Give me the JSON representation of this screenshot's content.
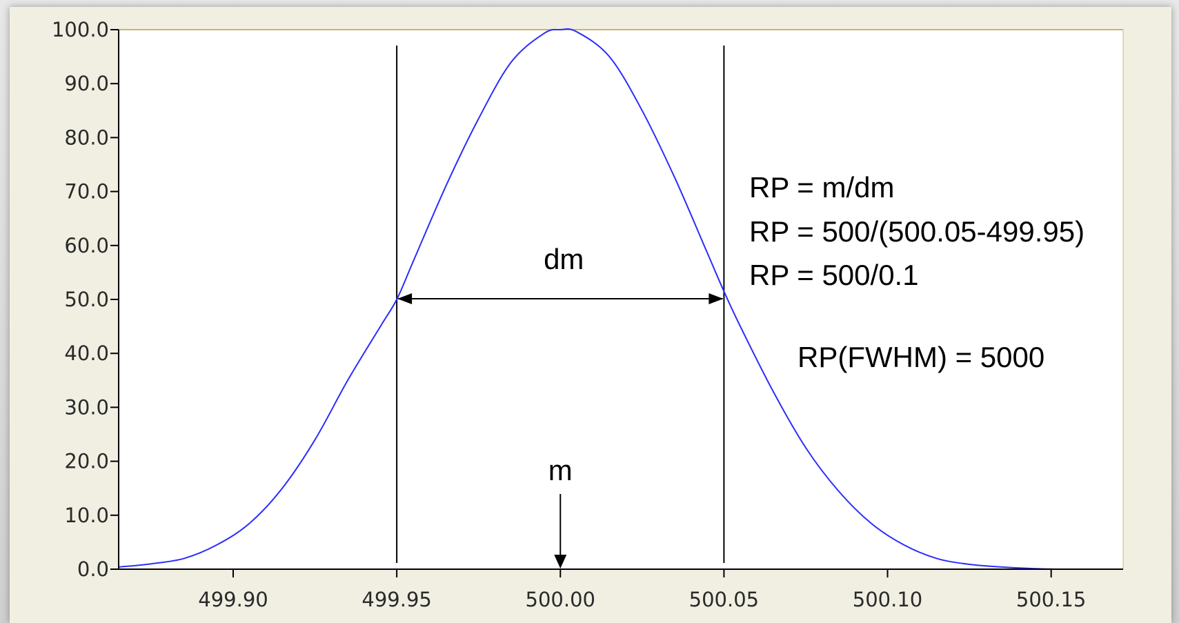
{
  "chart_data": {
    "type": "line",
    "title": "",
    "xlabel": "",
    "ylabel": "",
    "xlim": [
      499.865,
      500.172
    ],
    "ylim": [
      0,
      100
    ],
    "grid": false,
    "x_ticks": [
      {
        "value": 499.9,
        "label": "499.90"
      },
      {
        "value": 499.95,
        "label": "499.95"
      },
      {
        "value": 500.0,
        "label": "500.00"
      },
      {
        "value": 500.05,
        "label": "500.05"
      },
      {
        "value": 500.1,
        "label": "500.10"
      },
      {
        "value": 500.15,
        "label": "500.15"
      }
    ],
    "y_ticks": [
      {
        "value": 0,
        "label": "0.0"
      },
      {
        "value": 10,
        "label": "10.0"
      },
      {
        "value": 20,
        "label": "20.0"
      },
      {
        "value": 30,
        "label": "30.0"
      },
      {
        "value": 40,
        "label": "40.0"
      },
      {
        "value": 50,
        "label": "50.0"
      },
      {
        "value": 60,
        "label": "60.0"
      },
      {
        "value": 70,
        "label": "70.0"
      },
      {
        "value": 80,
        "label": "80.0"
      },
      {
        "value": 90,
        "label": "90.0"
      },
      {
        "value": 100,
        "label": "100.0"
      }
    ],
    "series": [
      {
        "color": "#2b2bff",
        "x": [
          499.865,
          499.875,
          499.885,
          499.895,
          499.905,
          499.915,
          499.925,
          499.935,
          499.945,
          499.95,
          499.955,
          499.965,
          499.975,
          499.985,
          499.995,
          500.0,
          500.005,
          500.015,
          500.025,
          500.035,
          500.045,
          500.05,
          500.055,
          500.065,
          500.075,
          500.085,
          500.095,
          500.105,
          500.115,
          500.125,
          500.135,
          500.145,
          500.152
        ],
        "y": [
          0.4,
          1.0,
          2.0,
          4.5,
          8.5,
          15.0,
          24.0,
          35.0,
          45.0,
          50.0,
          57.0,
          71.0,
          83.5,
          94.0,
          99.3,
          100.0,
          99.6,
          95.0,
          85.0,
          72.5,
          58.5,
          51.5,
          45.0,
          33.0,
          22.5,
          14.5,
          8.5,
          4.5,
          2.0,
          0.9,
          0.4,
          0.1,
          0.0
        ]
      }
    ],
    "vlines": [
      499.95,
      500.05
    ],
    "annotations": {
      "dm_label": "dm",
      "m_label": "m",
      "m_x": 500.0,
      "fwhm_y": 50,
      "formula_lines": [
        "RP = m/dm",
        "RP = 500/(500.05-499.95)",
        "RP = 500/0.1"
      ],
      "result": "RP(FWHM) = 5000"
    },
    "colors": {
      "axis": "#000000",
      "frame_top_right": "#c8b478",
      "plot_background": "#ffffff",
      "panel_background": "#f1efe2"
    }
  }
}
